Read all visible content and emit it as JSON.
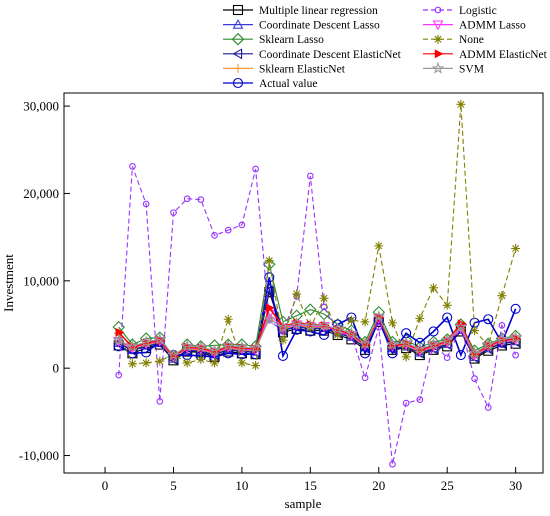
{
  "chart_data": {
    "type": "line",
    "xlabel": "sample",
    "ylabel": "Investment",
    "xlim": [
      -3,
      32
    ],
    "ylim": [
      -12000,
      31500
    ],
    "xticks": [
      0,
      5,
      10,
      15,
      20,
      25,
      30
    ],
    "yticks": [
      -10000,
      0,
      10000,
      20000,
      30000
    ],
    "ytick_labels": [
      "-10,000",
      "0",
      "10,000",
      "20,000",
      "30,000"
    ],
    "grid": false,
    "legend_position": "top (two columns above the plot)",
    "x": [
      1,
      2,
      3,
      4,
      5,
      6,
      7,
      8,
      9,
      10,
      11,
      12,
      13,
      14,
      15,
      16,
      17,
      18,
      19,
      20,
      21,
      22,
      23,
      24,
      25,
      26,
      27,
      28,
      29,
      30
    ],
    "series": [
      {
        "name": "Multiple linear regression",
        "color": "#000000",
        "dash": "solid",
        "marker": "square",
        "values": [
          2600,
          1700,
          2300,
          2700,
          900,
          1900,
          1800,
          1300,
          1900,
          1700,
          1600,
          8700,
          4100,
          4500,
          4300,
          4300,
          3800,
          3300,
          2100,
          5300,
          2100,
          2300,
          1500,
          2100,
          2500,
          4200,
          1100,
          2000,
          2600,
          2800
        ]
      },
      {
        "name": "Coordinate Descent Lasso",
        "color": "#3b3bd6",
        "dash": "solid",
        "marker": "triangle-up",
        "values": [
          2900,
          2100,
          2600,
          2900,
          1100,
          2100,
          2000,
          1600,
          2200,
          2000,
          1900,
          9100,
          4400,
          4800,
          4600,
          4600,
          4100,
          3600,
          2400,
          5500,
          2300,
          2500,
          1800,
          2300,
          2800,
          4400,
          1300,
          2300,
          2900,
          3100
        ]
      },
      {
        "name": "Sklearn Lasso",
        "color": "#2e8b2e",
        "dash": "solid",
        "marker": "diamond",
        "values": [
          4700,
          2700,
          3400,
          3500,
          1300,
          2700,
          2500,
          2600,
          2700,
          2700,
          2500,
          11900,
          5300,
          6000,
          6700,
          6200,
          5000,
          4300,
          3000,
          6400,
          3000,
          3200,
          2400,
          3000,
          3300,
          5000,
          2000,
          2800,
          3400,
          3700
        ]
      },
      {
        "name": "Coordinate Descent ElasticNet",
        "color": "#1a1a8c",
        "dash": "solid",
        "marker": "triangle-left",
        "values": [
          2800,
          2000,
          2500,
          2800,
          1000,
          2000,
          1900,
          1500,
          2100,
          1900,
          1800,
          8900,
          4300,
          4700,
          4500,
          4500,
          4000,
          3500,
          2300,
          5400,
          2200,
          2400,
          1700,
          2200,
          2700,
          4300,
          1200,
          2200,
          2800,
          3000
        ]
      },
      {
        "name": "Sklearn ElasticNet",
        "color": "#ff9933",
        "dash": "solid",
        "marker": "plus",
        "values": [
          3000,
          2200,
          2700,
          3000,
          1200,
          2200,
          2100,
          1700,
          2300,
          2100,
          2000,
          5800,
          4500,
          4900,
          4700,
          4700,
          4200,
          3700,
          2500,
          5600,
          2400,
          2600,
          1900,
          2400,
          2900,
          4500,
          1400,
          2400,
          3000,
          3200
        ]
      },
      {
        "name": "Actual value",
        "color": "#0000cc",
        "dash": "solid",
        "marker": "circle",
        "values": [
          2500,
          1700,
          1800,
          3000,
          1500,
          1500,
          1400,
          1300,
          1700,
          1600,
          1600,
          10400,
          1400,
          4400,
          4200,
          3800,
          5000,
          5800,
          1700,
          5500,
          1700,
          4000,
          2900,
          4200,
          5800,
          1500,
          5200,
          5600,
          2900,
          6800
        ]
      },
      {
        "name": "Logistic",
        "color": "#9933ff",
        "dash": "dashed",
        "marker": "circle-small",
        "values": [
          -800,
          23100,
          18800,
          -3800,
          17800,
          19400,
          19300,
          15200,
          15800,
          16400,
          22800,
          5500,
          4200,
          8200,
          22000,
          7000,
          4000,
          3800,
          -1100,
          4700,
          -11000,
          -4000,
          -3600,
          2800,
          1200,
          4800,
          -1200,
          -4500,
          4900,
          1500
        ]
      },
      {
        "name": "ADMM Lasso",
        "color": "#ff33ff",
        "dash": "solid",
        "marker": "triangle-down",
        "values": [
          3100,
          2300,
          2800,
          3100,
          1300,
          2300,
          2200,
          1800,
          2400,
          2200,
          2100,
          6200,
          4600,
          5000,
          4800,
          4800,
          4300,
          3800,
          2600,
          5700,
          2500,
          2700,
          2000,
          2500,
          3000,
          4600,
          1500,
          2500,
          3100,
          3300
        ]
      },
      {
        "name": "None",
        "color": "#808000",
        "dash": "dashed",
        "marker": "asterisk",
        "values": [
          4000,
          500,
          600,
          800,
          1600,
          600,
          1000,
          600,
          5600,
          600,
          300,
          12300,
          3200,
          8500,
          4600,
          8000,
          3800,
          5500,
          5300,
          14000,
          5200,
          1300,
          5700,
          9200,
          7200,
          30200,
          4300,
          2600,
          8300,
          13700
        ]
      },
      {
        "name": "ADMM ElasticNet",
        "color": "#ff0000",
        "dash": "solid",
        "marker": "arrow-right",
        "values": [
          4100,
          2400,
          2900,
          3200,
          1400,
          2400,
          2300,
          1900,
          2500,
          2300,
          2200,
          6900,
          4800,
          5200,
          5000,
          4900,
          4400,
          3900,
          2700,
          5800,
          2600,
          2800,
          2100,
          2600,
          3100,
          5100,
          1600,
          2600,
          3200,
          3400
        ]
      },
      {
        "name": "SVM",
        "color": "#999999",
        "dash": "solid",
        "marker": "star",
        "values": [
          3200,
          2500,
          3000,
          3300,
          1500,
          2500,
          2400,
          2000,
          2600,
          2400,
          2300,
          5600,
          4700,
          5100,
          4900,
          4900,
          4500,
          4000,
          2800,
          5900,
          2700,
          2900,
          2200,
          2700,
          3200,
          4700,
          1700,
          2700,
          3300,
          3500
        ]
      }
    ]
  }
}
